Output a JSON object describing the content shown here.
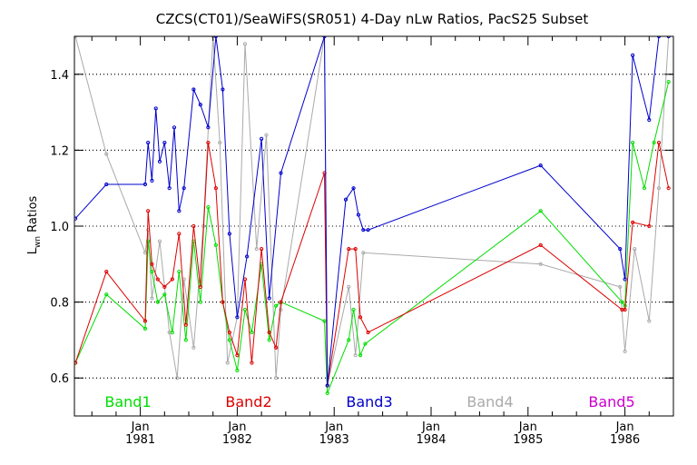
{
  "chart_data": {
    "type": "line",
    "title": "CZCS(CT01)/SeaWiFS(SR051) 4-Day nLw Ratios, PacS25 Subset",
    "ylabel_main": "L",
    "ylabel_sub": "wn",
    "ylabel_rest": " Ratios",
    "ylim": [
      0.5,
      1.5
    ],
    "yticks": [
      0.6,
      0.8,
      1.0,
      1.2,
      1.4
    ],
    "ytick_labels": [
      "0.6",
      "0.8",
      "1.0",
      "1.2",
      "1.4"
    ],
    "xlim": [
      1980.32,
      1986.5
    ],
    "xticks": [
      1981,
      1982,
      1983,
      1984,
      1985,
      1986
    ],
    "xtick_month": "Jan",
    "xtick_years": [
      "1981",
      "1982",
      "1983",
      "1984",
      "1985",
      "1986"
    ],
    "grid": true,
    "legend_position": "bottom",
    "series": [
      {
        "name": "Band1",
        "color": "#00dd00",
        "x": [
          1980.33,
          1980.65,
          1981.05,
          1981.08,
          1981.12,
          1981.18,
          1981.25,
          1981.33,
          1981.4,
          1981.47,
          1981.55,
          1981.62,
          1981.7,
          1981.78,
          1981.85,
          1981.92,
          1982.0,
          1982.08,
          1982.15,
          1982.25,
          1982.33,
          1982.4,
          1982.45,
          1982.9,
          1982.93,
          1983.15,
          1983.2,
          1983.27,
          1983.32,
          1985.13,
          1985.97,
          1986.0,
          1986.08,
          1986.2,
          1986.3,
          1986.45
        ],
        "y": [
          0.64,
          0.82,
          0.73,
          0.96,
          0.88,
          0.8,
          0.82,
          0.72,
          0.88,
          0.7,
          0.96,
          0.8,
          1.05,
          0.95,
          0.8,
          0.7,
          0.62,
          0.78,
          0.72,
          0.9,
          0.7,
          0.79,
          0.8,
          0.75,
          0.56,
          0.7,
          0.78,
          0.66,
          0.69,
          1.04,
          0.8,
          0.79,
          1.22,
          1.1,
          1.22,
          1.38
        ]
      },
      {
        "name": "Band2",
        "color": "#dd0000",
        "x": [
          1980.33,
          1980.65,
          1981.05,
          1981.08,
          1981.12,
          1981.18,
          1981.25,
          1981.33,
          1981.4,
          1981.47,
          1981.55,
          1981.62,
          1981.7,
          1981.78,
          1981.85,
          1981.92,
          1982.0,
          1982.08,
          1982.15,
          1982.25,
          1982.33,
          1982.4,
          1982.45,
          1982.9,
          1982.93,
          1983.15,
          1983.22,
          1983.27,
          1983.35,
          1985.13,
          1985.97,
          1986.0,
          1986.08,
          1986.25,
          1986.35,
          1986.45
        ],
        "y": [
          0.64,
          0.88,
          0.75,
          1.04,
          0.9,
          0.86,
          0.84,
          0.86,
          0.98,
          0.74,
          1.0,
          0.84,
          1.22,
          1.1,
          0.8,
          0.72,
          0.66,
          0.86,
          0.64,
          0.94,
          0.72,
          0.68,
          0.8,
          1.14,
          0.58,
          0.94,
          0.94,
          0.76,
          0.72,
          0.95,
          0.78,
          0.78,
          1.01,
          1.0,
          1.22,
          1.1
        ]
      },
      {
        "name": "Band3",
        "color": "#0000cc",
        "x": [
          1980.33,
          1980.65,
          1981.05,
          1981.08,
          1981.12,
          1981.16,
          1981.2,
          1981.25,
          1981.3,
          1981.35,
          1981.4,
          1981.45,
          1981.55,
          1981.62,
          1981.7,
          1981.78,
          1981.85,
          1981.92,
          1982.0,
          1982.1,
          1982.25,
          1982.33,
          1982.45,
          1982.9,
          1982.93,
          1983.12,
          1983.2,
          1983.25,
          1983.3,
          1983.35,
          1985.13,
          1985.95,
          1986.0,
          1986.08,
          1986.25,
          1986.35,
          1986.45
        ],
        "y": [
          1.02,
          1.11,
          1.11,
          1.22,
          1.12,
          1.31,
          1.17,
          1.22,
          1.1,
          1.26,
          1.04,
          1.1,
          1.36,
          1.32,
          1.26,
          1.5,
          1.36,
          0.98,
          0.76,
          0.92,
          1.23,
          0.81,
          1.14,
          1.5,
          0.58,
          1.07,
          1.1,
          1.03,
          0.99,
          0.99,
          1.16,
          0.94,
          0.86,
          1.45,
          1.28,
          1.5,
          1.5
        ]
      },
      {
        "name": "Band4",
        "color": "#aaaaaa",
        "x": [
          1980.33,
          1980.65,
          1981.05,
          1981.08,
          1981.12,
          1981.2,
          1981.3,
          1981.38,
          1981.45,
          1981.55,
          1981.65,
          1981.75,
          1981.82,
          1981.9,
          1982.0,
          1982.08,
          1982.2,
          1982.3,
          1982.4,
          1982.45,
          1982.9,
          1982.93,
          1983.15,
          1983.22,
          1983.3,
          1985.13,
          1985.95,
          1986.0,
          1986.1,
          1986.25,
          1986.35,
          1986.45
        ],
        "y": [
          1.5,
          1.19,
          0.93,
          0.99,
          0.81,
          0.96,
          0.72,
          0.6,
          0.86,
          0.68,
          1.0,
          1.5,
          1.22,
          0.64,
          0.76,
          1.48,
          0.94,
          1.24,
          0.6,
          0.78,
          1.5,
          0.58,
          0.84,
          0.66,
          0.93,
          0.9,
          0.84,
          0.67,
          0.94,
          0.75,
          1.1,
          1.5
        ]
      },
      {
        "name": "Band5",
        "color": "#cc00cc",
        "x": [],
        "y": []
      }
    ]
  }
}
